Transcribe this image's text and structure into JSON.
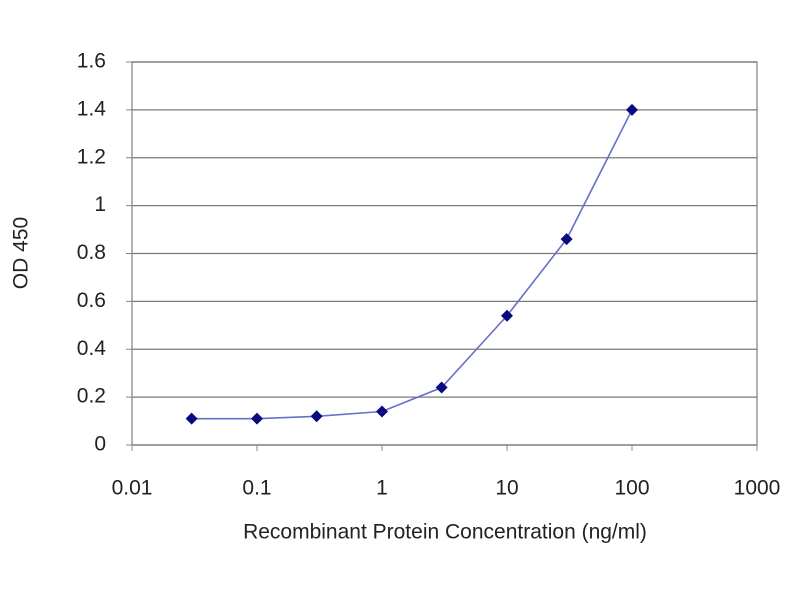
{
  "chart_data": {
    "type": "line",
    "x_label": "Recombinant Protein Concentration (ng/ml)",
    "y_label": "OD 450",
    "x": [
      0.03,
      0.1,
      0.3,
      1,
      3,
      10,
      30,
      100
    ],
    "series": [
      {
        "name": "OD 450",
        "color": "#6670c8",
        "marker_color": "#0a0a80",
        "values": [
          0.11,
          0.11,
          0.12,
          0.14,
          0.24,
          0.54,
          0.86,
          1.4
        ]
      }
    ],
    "xscale": "log",
    "xlim": [
      0.01,
      1000
    ],
    "xticks": [
      0.01,
      0.1,
      1,
      10,
      100,
      1000
    ],
    "ylim": [
      0,
      1.6
    ],
    "yticks": [
      0,
      0.2,
      0.4,
      0.6,
      0.8,
      1,
      1.2,
      1.4,
      1.6
    ],
    "grid": true
  }
}
